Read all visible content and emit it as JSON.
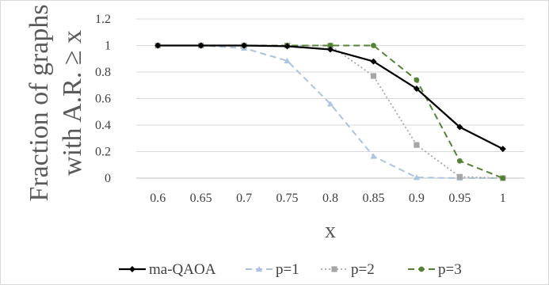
{
  "chart_data": {
    "type": "line",
    "x": [
      "0.6",
      "0.65",
      "0.7",
      "0.75",
      "0.8",
      "0.85",
      "0.9",
      "0.95",
      "1"
    ],
    "ylabel_lines": [
      "Fraction of graphs",
      "with A.R. ≥ x"
    ],
    "xlabel": "x",
    "ylim": [
      0,
      1.2
    ],
    "yticks": [
      "0",
      "0.2",
      "0.4",
      "0.6",
      "0.8",
      "1",
      "1.2"
    ],
    "grid": true,
    "legend_position": "bottom",
    "series": [
      {
        "name": "ma-QAOA",
        "color": "#000000",
        "dash": "solid",
        "marker": "diamond",
        "values": [
          1.0,
          1.0,
          1.0,
          0.995,
          0.97,
          0.88,
          0.675,
          0.385,
          0.22
        ]
      },
      {
        "name": "p=1",
        "color": "#aec3e0",
        "dash": "dashed",
        "marker": "triangle",
        "values": [
          1.0,
          1.0,
          0.98,
          0.885,
          0.56,
          0.165,
          0.005,
          0.0,
          0.0
        ]
      },
      {
        "name": "p=2",
        "color": "#a6a6a6",
        "dash": "dotted",
        "marker": "square",
        "values": [
          1.0,
          1.0,
          1.0,
          1.0,
          1.0,
          0.77,
          0.25,
          0.01,
          0.0
        ]
      },
      {
        "name": "p=3",
        "color": "#548235",
        "dash": "dashed",
        "marker": "circle",
        "values": [
          1.0,
          1.0,
          1.0,
          1.0,
          1.0,
          1.0,
          0.74,
          0.13,
          0.0
        ]
      }
    ]
  }
}
